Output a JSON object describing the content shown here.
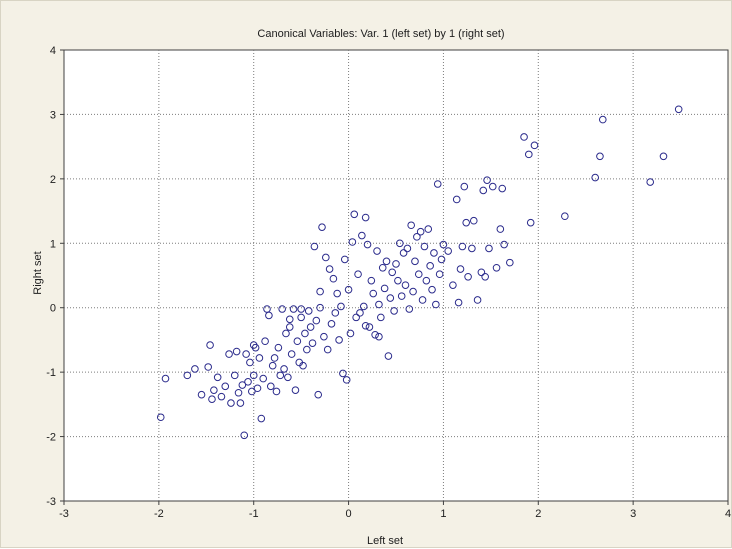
{
  "chart_data": {
    "type": "scatter",
    "title": "Canonical Variables: Var.   1 (left set) by   1 (right set)",
    "xlabel": "Left set",
    "ylabel": "Right set",
    "xlim": [
      -3,
      4
    ],
    "ylim": [
      -3,
      4
    ],
    "xticks": [
      -3,
      -2,
      -1,
      0,
      1,
      2,
      3,
      4
    ],
    "yticks": [
      -3,
      -2,
      -1,
      0,
      1,
      2,
      3,
      4
    ],
    "grid": true,
    "marker": "circle",
    "marker_color": "#2b2b8c",
    "points": [
      [
        -1.98,
        -1.7
      ],
      [
        -1.93,
        -1.1
      ],
      [
        -1.7,
        -1.05
      ],
      [
        -1.62,
        -0.95
      ],
      [
        -1.55,
        -1.35
      ],
      [
        -1.48,
        -0.92
      ],
      [
        -1.46,
        -0.58
      ],
      [
        -1.44,
        -1.42
      ],
      [
        -1.42,
        -1.28
      ],
      [
        -1.38,
        -1.08
      ],
      [
        -1.34,
        -1.38
      ],
      [
        -1.3,
        -1.22
      ],
      [
        -1.26,
        -0.72
      ],
      [
        -1.24,
        -1.48
      ],
      [
        -1.2,
        -1.05
      ],
      [
        -1.18,
        -0.68
      ],
      [
        -1.16,
        -1.32
      ],
      [
        -1.14,
        -1.48
      ],
      [
        -1.12,
        -1.2
      ],
      [
        -1.1,
        -1.98
      ],
      [
        -1.08,
        -0.72
      ],
      [
        -1.06,
        -1.15
      ],
      [
        -1.04,
        -0.85
      ],
      [
        -1.02,
        -1.3
      ],
      [
        -1.0,
        -1.05
      ],
      [
        -0.98,
        -0.62
      ],
      [
        -0.96,
        -1.25
      ],
      [
        -0.94,
        -0.78
      ],
      [
        -0.92,
        -1.72
      ],
      [
        -0.9,
        -1.1
      ],
      [
        -0.88,
        -0.52
      ],
      [
        -0.86,
        -0.02
      ],
      [
        -0.84,
        -0.12
      ],
      [
        -0.82,
        -1.22
      ],
      [
        -0.8,
        -0.9
      ],
      [
        -0.78,
        -0.78
      ],
      [
        -0.76,
        -1.3
      ],
      [
        -0.74,
        -0.62
      ],
      [
        -0.72,
        -1.05
      ],
      [
        -0.7,
        -0.02
      ],
      [
        -0.68,
        -0.95
      ],
      [
        -0.66,
        -0.4
      ],
      [
        -0.64,
        -1.08
      ],
      [
        -0.62,
        -0.3
      ],
      [
        -0.6,
        -0.72
      ],
      [
        -0.58,
        -0.02
      ],
      [
        -0.56,
        -1.28
      ],
      [
        -0.54,
        -0.52
      ],
      [
        -0.52,
        -0.85
      ],
      [
        -0.5,
        -0.15
      ],
      [
        -0.48,
        -0.9
      ],
      [
        -0.46,
        -0.4
      ],
      [
        -0.44,
        -0.65
      ],
      [
        -0.42,
        -0.05
      ],
      [
        -0.4,
        -0.3
      ],
      [
        -0.38,
        -0.55
      ],
      [
        -0.36,
        0.95
      ],
      [
        -0.34,
        -0.2
      ],
      [
        -0.32,
        -1.35
      ],
      [
        -0.3,
        0.25
      ],
      [
        -0.28,
        1.25
      ],
      [
        -0.26,
        -0.45
      ],
      [
        -0.24,
        0.78
      ],
      [
        -0.22,
        -0.65
      ],
      [
        -0.2,
        0.6
      ],
      [
        -0.18,
        -0.25
      ],
      [
        -0.16,
        0.45
      ],
      [
        -0.14,
        -0.08
      ],
      [
        -0.12,
        0.22
      ],
      [
        -0.1,
        -0.5
      ],
      [
        -0.08,
        0.02
      ],
      [
        -0.06,
        -1.02
      ],
      [
        -0.04,
        0.75
      ],
      [
        -0.02,
        -1.12
      ],
      [
        0.0,
        0.28
      ],
      [
        0.02,
        -0.4
      ],
      [
        0.04,
        1.02
      ],
      [
        0.06,
        1.45
      ],
      [
        0.08,
        -0.15
      ],
      [
        0.1,
        0.52
      ],
      [
        0.12,
        -0.08
      ],
      [
        0.14,
        1.12
      ],
      [
        0.16,
        0.02
      ],
      [
        0.18,
        1.4
      ],
      [
        0.2,
        0.98
      ],
      [
        0.22,
        -0.3
      ],
      [
        0.24,
        0.42
      ],
      [
        0.26,
        0.22
      ],
      [
        0.28,
        -0.42
      ],
      [
        0.3,
        0.88
      ],
      [
        0.32,
        0.05
      ],
      [
        0.34,
        -0.15
      ],
      [
        0.36,
        0.62
      ],
      [
        0.38,
        0.3
      ],
      [
        0.4,
        0.72
      ],
      [
        0.42,
        -0.75
      ],
      [
        0.44,
        0.15
      ],
      [
        0.46,
        0.55
      ],
      [
        0.48,
        -0.05
      ],
      [
        0.5,
        0.68
      ],
      [
        0.52,
        0.42
      ],
      [
        0.54,
        1.0
      ],
      [
        0.56,
        0.18
      ],
      [
        0.58,
        0.85
      ],
      [
        0.6,
        0.35
      ],
      [
        0.62,
        0.92
      ],
      [
        0.64,
        -0.02
      ],
      [
        0.66,
        1.28
      ],
      [
        0.68,
        0.25
      ],
      [
        0.7,
        0.72
      ],
      [
        0.72,
        1.1
      ],
      [
        0.74,
        0.52
      ],
      [
        0.76,
        1.18
      ],
      [
        0.78,
        0.12
      ],
      [
        0.8,
        0.95
      ],
      [
        0.82,
        0.42
      ],
      [
        0.84,
        1.22
      ],
      [
        0.86,
        0.65
      ],
      [
        0.88,
        0.28
      ],
      [
        0.9,
        0.85
      ],
      [
        0.92,
        0.05
      ],
      [
        0.94,
        1.92
      ],
      [
        0.96,
        0.52
      ],
      [
        0.98,
        0.75
      ],
      [
        1.0,
        0.98
      ],
      [
        1.05,
        0.88
      ],
      [
        1.1,
        0.35
      ],
      [
        1.14,
        1.68
      ],
      [
        1.16,
        0.08
      ],
      [
        1.18,
        0.6
      ],
      [
        1.2,
        0.95
      ],
      [
        1.22,
        1.88
      ],
      [
        1.24,
        1.32
      ],
      [
        1.26,
        0.48
      ],
      [
        1.3,
        0.92
      ],
      [
        1.32,
        1.35
      ],
      [
        1.36,
        0.12
      ],
      [
        1.4,
        0.55
      ],
      [
        1.42,
        1.82
      ],
      [
        1.44,
        0.48
      ],
      [
        1.46,
        1.98
      ],
      [
        1.48,
        0.92
      ],
      [
        1.52,
        1.88
      ],
      [
        1.56,
        0.62
      ],
      [
        1.6,
        1.22
      ],
      [
        1.62,
        1.85
      ],
      [
        1.64,
        0.98
      ],
      [
        1.7,
        0.7
      ],
      [
        1.85,
        2.65
      ],
      [
        1.9,
        2.38
      ],
      [
        1.92,
        1.32
      ],
      [
        1.96,
        2.52
      ],
      [
        2.28,
        1.42
      ],
      [
        2.6,
        2.02
      ],
      [
        2.65,
        2.35
      ],
      [
        2.68,
        2.92
      ],
      [
        3.18,
        1.95
      ],
      [
        3.32,
        2.35
      ],
      [
        3.48,
        3.08
      ],
      [
        -0.5,
        -0.02
      ],
      [
        -0.3,
        0.0
      ],
      [
        0.18,
        -0.28
      ],
      [
        0.32,
        -0.45
      ],
      [
        -0.62,
        -0.18
      ],
      [
        -1.0,
        -0.58
      ]
    ]
  }
}
